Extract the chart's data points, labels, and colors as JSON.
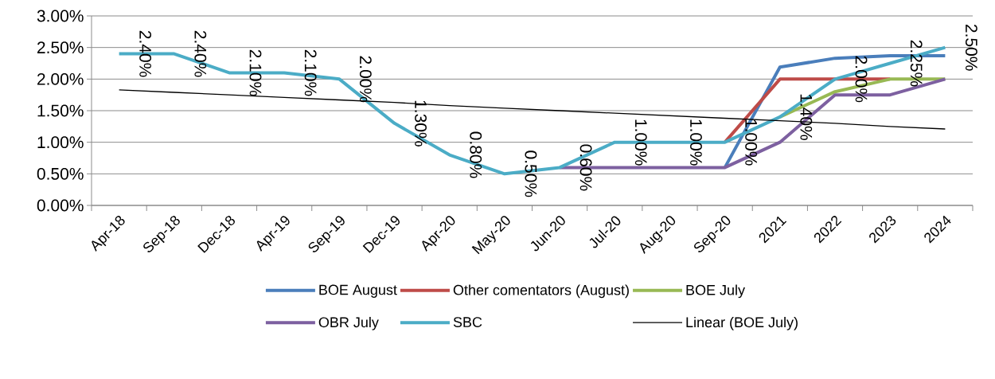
{
  "chart_data": {
    "type": "line",
    "categories": [
      "Apr-18",
      "Sep-18",
      "Dec-18",
      "Apr-19",
      "Sep-19",
      "Dec-19",
      "Apr-20",
      "May-20",
      "Jun-20",
      "Jul-20",
      "Aug-20",
      "Sep-20",
      "2021",
      "2022",
      "2023",
      "2024"
    ],
    "series": [
      {
        "name": "BOE August",
        "color": "#4a7ebb",
        "values": [
          null,
          null,
          null,
          null,
          null,
          null,
          null,
          null,
          null,
          null,
          null,
          0.6,
          2.19,
          2.33,
          2.37,
          2.37
        ]
      },
      {
        "name": "Other comentators (August)",
        "color": "#be4b48",
        "values": [
          null,
          null,
          null,
          null,
          null,
          null,
          null,
          null,
          null,
          null,
          null,
          1.0,
          2.0,
          2.0,
          2.0,
          null
        ]
      },
      {
        "name": "BOE July",
        "color": "#98b954",
        "values": [
          null,
          null,
          null,
          null,
          null,
          null,
          null,
          null,
          null,
          null,
          null,
          null,
          1.4,
          1.8,
          2.0,
          2.0
        ]
      },
      {
        "name": "OBR July",
        "color": "#7d60a0",
        "values": [
          null,
          null,
          null,
          null,
          null,
          null,
          null,
          null,
          0.6,
          0.6,
          0.6,
          0.6,
          1.0,
          1.75,
          1.75,
          2.0
        ]
      },
      {
        "name": "SBC",
        "color": "#4bacc6",
        "values": [
          2.4,
          2.4,
          2.1,
          2.1,
          2.0,
          1.3,
          0.8,
          0.5,
          0.6,
          1.0,
          1.0,
          1.0,
          1.4,
          2.0,
          2.25,
          2.5
        ],
        "value_labels": [
          "2.40%",
          "2.40%",
          "2.10%",
          "2.10%",
          "2.00%",
          "1.30%",
          "0.80%",
          "0.50%",
          "0.60%",
          "1.00%",
          "1.00%",
          "1.00%",
          "1.40%",
          "2.00%",
          "2.25%",
          "2.50%"
        ]
      },
      {
        "name": "Linear (BOE July)",
        "type": "line",
        "color": "#000000",
        "values": [
          1.83,
          1.79,
          1.75,
          1.71,
          1.67,
          1.63,
          1.58,
          1.54,
          1.5,
          1.46,
          1.42,
          1.38,
          1.34,
          1.3,
          1.25,
          1.21
        ]
      }
    ],
    "ylim": [
      0,
      3
    ],
    "yticks": [
      {
        "value": 0,
        "label": "0.00%"
      },
      {
        "value": 0.5,
        "label": "0.50%"
      },
      {
        "value": 1,
        "label": "1.00%"
      },
      {
        "value": 1.5,
        "label": "1.50%"
      },
      {
        "value": 2,
        "label": "2.00%"
      },
      {
        "value": 2.5,
        "label": "2.50%"
      },
      {
        "value": 3,
        "label": "3.00%"
      }
    ],
    "grid": "y",
    "legend": "bottom"
  }
}
